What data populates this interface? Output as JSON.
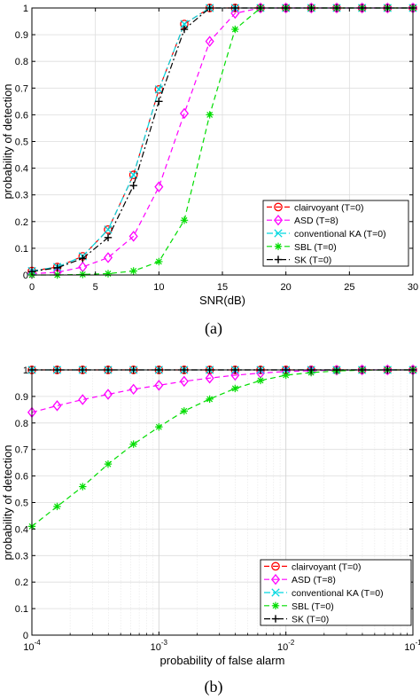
{
  "chart_data": [
    {
      "id": "a",
      "type": "line",
      "caption": "(a)",
      "xlabel": "SNR(dB)",
      "ylabel": "probability of detection",
      "xlim": [
        0,
        30
      ],
      "ylim": [
        0,
        1
      ],
      "xscale": "linear",
      "xticks": [
        0,
        5,
        10,
        15,
        20,
        25,
        30
      ],
      "xtick_labels": [
        "0",
        "5",
        "10",
        "15",
        "20",
        "25",
        "30"
      ],
      "yticks": [
        0,
        0.1,
        0.2,
        0.3,
        0.4,
        0.5,
        0.6,
        0.7,
        0.8,
        0.9,
        1
      ],
      "ytick_labels": [
        "0",
        "0.1",
        "0.2",
        "0.3",
        "0.4",
        "0.5",
        "0.6",
        "0.7",
        "0.8",
        "0.9",
        "1"
      ],
      "grid": true,
      "legend_position": "bottom-right",
      "x": [
        0,
        2,
        4,
        6,
        8,
        10,
        12,
        14,
        16,
        18,
        20,
        22,
        24,
        26,
        28,
        30
      ],
      "series": [
        {
          "name": "clairvoyant (T=0)",
          "color": "#ff0000",
          "dash": "dashed",
          "marker": "circle",
          "values": [
            0.015,
            0.03,
            0.07,
            0.17,
            0.375,
            0.695,
            0.94,
            1,
            1,
            1,
            1,
            1,
            1,
            1,
            1,
            1
          ]
        },
        {
          "name": "ASD (T=8)",
          "color": "#ff00ff",
          "dash": "dashed",
          "marker": "diamond",
          "values": [
            0.005,
            0.01,
            0.03,
            0.065,
            0.145,
            0.33,
            0.605,
            0.875,
            0.98,
            1,
            1,
            1,
            1,
            1,
            1,
            1
          ]
        },
        {
          "name": "conventional KA (T=0)",
          "color": "#00d8e0",
          "dash": "dashdot",
          "marker": "x",
          "values": [
            0.015,
            0.03,
            0.07,
            0.17,
            0.375,
            0.695,
            0.94,
            1,
            1,
            1,
            1,
            1,
            1,
            1,
            1,
            1
          ]
        },
        {
          "name": "SBL (T=0)",
          "color": "#00dd00",
          "dash": "dashed",
          "marker": "asterisk",
          "values": [
            0,
            0,
            0.002,
            0.005,
            0.015,
            0.05,
            0.205,
            0.6,
            0.92,
            1,
            1,
            1,
            1,
            1,
            1,
            1
          ]
        },
        {
          "name": "SK (T=0)",
          "color": "#000000",
          "dash": "dashdot",
          "marker": "plus",
          "values": [
            0.013,
            0.027,
            0.062,
            0.14,
            0.335,
            0.65,
            0.92,
            1,
            1,
            1,
            1,
            1,
            1,
            1,
            1,
            1
          ]
        }
      ]
    },
    {
      "id": "b",
      "type": "line",
      "caption": "(b)",
      "xlabel": "probability of false alarm",
      "ylabel": "probability of detection",
      "xlim": [
        0.0001,
        0.1
      ],
      "ylim": [
        0,
        1
      ],
      "xscale": "log",
      "xticks": [
        0.0001,
        0.001,
        0.01,
        0.1
      ],
      "xtick_labels": [
        [
          "10",
          "-4"
        ],
        [
          "10",
          "-3"
        ],
        [
          "10",
          "-2"
        ],
        [
          "10",
          "-1"
        ]
      ],
      "yticks": [
        0,
        0.1,
        0.2,
        0.3,
        0.4,
        0.5,
        0.6,
        0.7,
        0.8,
        0.9,
        1
      ],
      "ytick_labels": [
        "0",
        "0.1",
        "0.2",
        "0.3",
        "0.4",
        "0.5",
        "0.6",
        "0.7",
        "0.8",
        "0.9",
        "1"
      ],
      "grid": true,
      "legend_position": "bottom-right",
      "x": [
        0.0001,
        0.000158,
        0.000251,
        0.000398,
        0.000631,
        0.001,
        0.00158,
        0.00251,
        0.00398,
        0.00631,
        0.01,
        0.0158,
        0.0251,
        0.0398,
        0.0631,
        0.1
      ],
      "series": [
        {
          "name": "clairvoyant (T=0)",
          "color": "#ff0000",
          "dash": "dashed",
          "marker": "circle",
          "values": [
            1,
            1,
            1,
            1,
            1,
            1,
            1,
            1,
            1,
            1,
            1,
            1,
            1,
            1,
            1,
            1
          ]
        },
        {
          "name": "ASD (T=8)",
          "color": "#ff00ff",
          "dash": "dashed",
          "marker": "diamond",
          "values": [
            0.84,
            0.865,
            0.888,
            0.908,
            0.927,
            0.942,
            0.957,
            0.969,
            0.98,
            0.988,
            0.994,
            0.997,
            0.999,
            1,
            1,
            1
          ]
        },
        {
          "name": "conventional KA (T=0)",
          "color": "#00d8e0",
          "dash": "dashdot",
          "marker": "x",
          "values": [
            1,
            1,
            1,
            1,
            1,
            1,
            1,
            1,
            1,
            1,
            1,
            1,
            1,
            1,
            1,
            1
          ]
        },
        {
          "name": "SBL (T=0)",
          "color": "#00dd00",
          "dash": "dashed",
          "marker": "asterisk",
          "values": [
            0.41,
            0.485,
            0.56,
            0.645,
            0.72,
            0.785,
            0.845,
            0.89,
            0.93,
            0.96,
            0.98,
            0.99,
            0.996,
            0.999,
            1,
            1
          ]
        },
        {
          "name": "SK (T=0)",
          "color": "#000000",
          "dash": "dashdot",
          "marker": "plus",
          "values": [
            1,
            1,
            1,
            1,
            1,
            1,
            1,
            1,
            1,
            1,
            1,
            1,
            1,
            1,
            1,
            1
          ]
        }
      ]
    }
  ]
}
